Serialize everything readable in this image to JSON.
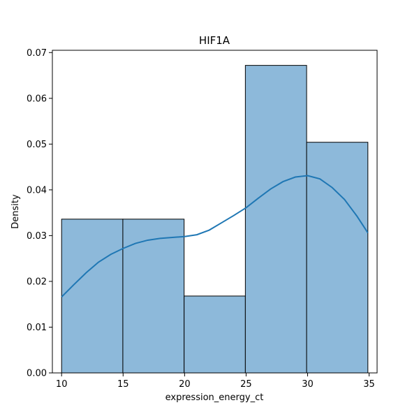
{
  "chart_data": {
    "type": "bar",
    "subtype": "histogram-with-kde",
    "title": "HIF1A",
    "xlabel": "expression_energy_ct",
    "ylabel": "Density",
    "xlim": [
      9.25,
      35.65
    ],
    "ylim": [
      0,
      0.0705
    ],
    "xticks": [
      10,
      15,
      20,
      25,
      30,
      35
    ],
    "yticks": [
      0.0,
      0.01,
      0.02,
      0.03,
      0.04,
      0.05,
      0.06,
      0.07
    ],
    "ytick_labels": [
      "0.00",
      "0.01",
      "0.02",
      "0.03",
      "0.04",
      "0.05",
      "0.06",
      "0.07"
    ],
    "bins": [
      {
        "x0": 10.0,
        "x1": 14.98,
        "density": 0.0336
      },
      {
        "x0": 14.98,
        "x1": 19.96,
        "density": 0.0336
      },
      {
        "x0": 19.96,
        "x1": 24.94,
        "density": 0.0168
      },
      {
        "x0": 24.94,
        "x1": 29.92,
        "density": 0.0672
      },
      {
        "x0": 29.92,
        "x1": 34.9,
        "density": 0.0504
      }
    ],
    "kde": {
      "x": [
        10,
        11,
        12,
        13,
        14,
        15,
        16,
        17,
        18,
        19,
        20,
        21,
        22,
        23,
        24,
        25,
        26,
        27,
        28,
        29,
        30,
        31,
        32,
        33,
        34,
        34.9
      ],
      "y": [
        0.0166,
        0.0193,
        0.0219,
        0.0242,
        0.0259,
        0.0272,
        0.0283,
        0.029,
        0.0294,
        0.0296,
        0.0298,
        0.0302,
        0.0312,
        0.0328,
        0.0344,
        0.0361,
        0.0382,
        0.0402,
        0.0418,
        0.0428,
        0.0431,
        0.0424,
        0.0405,
        0.0379,
        0.0343,
        0.0306
      ]
    },
    "colors": {
      "bar_fill": "#8db9da",
      "bar_edge": "#000000",
      "kde_line": "#1f77b4"
    },
    "grid": false,
    "legend": "none"
  }
}
